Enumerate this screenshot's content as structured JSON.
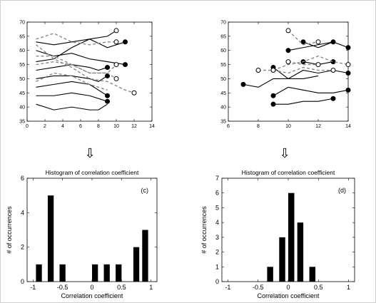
{
  "chart_data": [
    {
      "id": "top_left",
      "type": "line",
      "xlim": [
        0,
        14
      ],
      "ylim": [
        35,
        70
      ],
      "xticks": [
        0,
        2,
        4,
        6,
        8,
        10,
        12,
        14
      ],
      "yticks": [
        35,
        40,
        45,
        50,
        55,
        60,
        65,
        70
      ],
      "series": [
        {
          "style": "solid",
          "end_marker": "filled",
          "points": [
            [
              1,
              63
            ],
            [
              3,
              62
            ],
            [
              5,
              63
            ],
            [
              7,
              64
            ],
            [
              9,
              61
            ],
            [
              11,
              63
            ]
          ]
        },
        {
          "style": "solid",
          "end_marker": "filled",
          "points": [
            [
              1,
              60
            ],
            [
              3,
              58
            ],
            [
              5,
              59
            ],
            [
              7,
              57
            ],
            [
              9,
              56
            ],
            [
              11,
              55
            ]
          ]
        },
        {
          "style": "solid",
          "end_marker": "hollow",
          "points": [
            [
              1,
              56
            ],
            [
              3,
              57
            ],
            [
              5,
              61
            ],
            [
              7,
              64
            ],
            [
              9,
              65
            ],
            [
              10,
              67
            ]
          ]
        },
        {
          "style": "solid",
          "end_marker": "filled",
          "points": [
            [
              1,
              53
            ],
            [
              3,
              54
            ],
            [
              5,
              55
            ],
            [
              7,
              54
            ],
            [
              8,
              53
            ],
            [
              9,
              54
            ]
          ]
        },
        {
          "style": "solid",
          "end_marker": "filled",
          "points": [
            [
              1,
              50
            ],
            [
              3,
              51
            ],
            [
              5,
              51
            ],
            [
              7,
              50
            ],
            [
              8,
              49
            ],
            [
              9,
              51
            ]
          ]
        },
        {
          "style": "solid",
          "end_marker": "filled",
          "points": [
            [
              1,
              47
            ],
            [
              3,
              48
            ],
            [
              5,
              49
            ],
            [
              7,
              48
            ],
            [
              9,
              44
            ]
          ]
        },
        {
          "style": "solid",
          "end_marker": "filled",
          "points": [
            [
              1,
              44
            ],
            [
              3,
              44
            ],
            [
              5,
              45
            ],
            [
              7,
              44
            ],
            [
              9,
              42
            ]
          ]
        },
        {
          "style": "solid",
          "end_marker": "none",
          "points": [
            [
              1,
              41
            ],
            [
              3,
              39
            ],
            [
              5,
              40
            ],
            [
              7,
              39
            ],
            [
              8,
              39
            ],
            [
              9,
              41
            ]
          ]
        },
        {
          "style": "dashed",
          "end_marker": "hollow",
          "points": [
            [
              1,
              64
            ],
            [
              3,
              66
            ],
            [
              5,
              63
            ],
            [
              7,
              62
            ],
            [
              9,
              63
            ],
            [
              10,
              63
            ]
          ]
        },
        {
          "style": "dashed",
          "end_marker": "hollow",
          "points": [
            [
              1,
              58
            ],
            [
              3,
              58
            ],
            [
              5,
              55
            ],
            [
              7,
              52
            ],
            [
              9,
              52
            ],
            [
              10,
              50
            ]
          ]
        },
        {
          "style": "dashed",
          "end_marker": "hollow",
          "points": [
            [
              1,
              55
            ],
            [
              3,
              56
            ],
            [
              5,
              55
            ],
            [
              7,
              52
            ],
            [
              9,
              52
            ],
            [
              10,
              55
            ]
          ]
        },
        {
          "style": "dashed",
          "end_marker": "hollow",
          "points": [
            [
              1,
              62
            ],
            [
              3,
              57
            ],
            [
              5,
              54
            ],
            [
              7,
              50
            ],
            [
              9,
              49
            ],
            [
              11,
              46
            ],
            [
              12,
              45
            ]
          ]
        },
        {
          "style": "dashed",
          "end_marker": "none",
          "points": [
            [
              1,
              49
            ],
            [
              3,
              52
            ],
            [
              5,
              51
            ],
            [
              7,
              48
            ],
            [
              9,
              46
            ]
          ]
        }
      ]
    },
    {
      "id": "top_right",
      "type": "line",
      "xlim": [
        6,
        14
      ],
      "ylim": [
        35,
        70
      ],
      "xticks": [
        6,
        8,
        10,
        12,
        14
      ],
      "yticks": [
        35,
        40,
        45,
        50,
        55,
        60,
        65,
        70
      ],
      "series": [
        {
          "style": "solid",
          "start_marker": "filled",
          "end_marker": "none",
          "points": [
            [
              7,
              48
            ],
            [
              8,
              47
            ],
            [
              9,
              50
            ],
            [
              10,
              50
            ],
            [
              11,
              50
            ],
            [
              12,
              51
            ]
          ]
        },
        {
          "style": "solid",
          "start_marker": "filled",
          "end_marker": "filled",
          "points": [
            [
              10,
              60
            ],
            [
              11,
              61
            ],
            [
              12,
              62
            ],
            [
              13,
              63
            ],
            [
              14,
              61
            ]
          ]
        },
        {
          "style": "solid",
          "start_marker": "filled",
          "end_marker": "filled",
          "points": [
            [
              9,
              54
            ],
            [
              10,
              50
            ],
            [
              11,
              53
            ],
            [
              12,
              52
            ],
            [
              13,
              53
            ],
            [
              14,
              52
            ]
          ]
        },
        {
          "style": "solid",
          "start_marker": "filled",
          "end_marker": "filled",
          "points": [
            [
              9,
              44
            ],
            [
              10,
              47
            ],
            [
              11,
              46
            ],
            [
              12,
              45
            ],
            [
              13,
              45
            ],
            [
              14,
              46
            ]
          ]
        },
        {
          "style": "solid",
          "start_marker": "filled",
          "end_marker": "filled",
          "points": [
            [
              9,
              41
            ],
            [
              10,
              41
            ],
            [
              11,
              42
            ],
            [
              12,
              42
            ],
            [
              13,
              43
            ]
          ]
        },
        {
          "style": "solid",
          "start_marker": "filled",
          "end_marker": "filled",
          "points": [
            [
              11,
              56
            ],
            [
              12,
              55
            ],
            [
              13,
              56
            ]
          ]
        },
        {
          "style": "solid",
          "start_marker": "filled",
          "end_marker": "filled",
          "points": [
            [
              11,
              63
            ],
            [
              12,
              61
            ],
            [
              13,
              63
            ]
          ]
        },
        {
          "style": "dashed",
          "start_marker": "hollow",
          "end_marker": "hollow",
          "points": [
            [
              8,
              53
            ],
            [
              9,
              53
            ],
            [
              10,
              55
            ],
            [
              11,
              56
            ],
            [
              12,
              58
            ],
            [
              13,
              56
            ],
            [
              14,
              55
            ]
          ]
        },
        {
          "style": "dashed",
          "start_marker": "hollow",
          "end_marker": "hollow",
          "points": [
            [
              10,
              67
            ],
            [
              11,
              62
            ],
            [
              12,
              63
            ]
          ]
        },
        {
          "style": "dashed",
          "start_marker": "hollow",
          "end_marker": "hollow",
          "points": [
            [
              10,
              56
            ],
            [
              11,
              55
            ],
            [
              12,
              55
            ]
          ]
        },
        {
          "style": "dashed",
          "start_marker": "hollow",
          "end_marker": "hollow",
          "points": [
            [
              9,
              53
            ],
            [
              10,
              52
            ],
            [
              11,
              54
            ],
            [
              12,
              53
            ],
            [
              13,
              53
            ]
          ]
        }
      ]
    },
    {
      "id": "hist_c",
      "type": "bar",
      "title": "Histogram of correlation coefficient",
      "panel_label": "(c)",
      "xlabel": "Correlation coefficient",
      "ylabel": "# of occurrences",
      "xlim": [
        -1.1,
        1.1
      ],
      "ylim": [
        0,
        6
      ],
      "xticks": [
        -1,
        -0.5,
        0,
        0.5,
        1
      ],
      "yticks": [
        0,
        2,
        4,
        6
      ],
      "bar_width": 0.1,
      "x": [
        -0.9,
        -0.7,
        -0.5,
        0.05,
        0.25,
        0.45,
        0.75,
        0.9
      ],
      "values": [
        1,
        5,
        1,
        1,
        1,
        1,
        2,
        3
      ]
    },
    {
      "id": "hist_d",
      "type": "bar",
      "title": "Histogram of correlation coefficient",
      "panel_label": "(d)",
      "xlabel": "Correlation coefficient",
      "ylabel": "# of occurrences",
      "xlim": [
        -1.1,
        1.1
      ],
      "ylim": [
        0,
        7
      ],
      "xticks": [
        -1,
        -0.5,
        0,
        0.5,
        1
      ],
      "yticks": [
        0,
        1,
        2,
        3,
        4,
        5,
        6,
        7
      ],
      "bar_width": 0.1,
      "x": [
        -0.3,
        -0.1,
        0.05,
        0.2,
        0.4
      ],
      "values": [
        1,
        3,
        6,
        4,
        1
      ]
    }
  ],
  "arrows": {
    "left": "⇩",
    "right": "⇩"
  }
}
